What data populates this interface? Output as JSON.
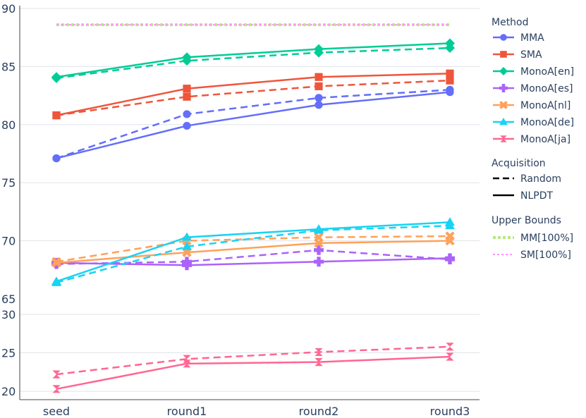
{
  "chart_data": {
    "type": "line",
    "categories": [
      "seed",
      "round1",
      "round2",
      "round3"
    ],
    "panels": [
      {
        "name": "upper",
        "ylim": [
          65,
          90
        ],
        "yticks": [
          65,
          70,
          75,
          80,
          85,
          90
        ]
      },
      {
        "name": "lower",
        "ylim": [
          19,
          30
        ],
        "yticks": [
          20,
          25,
          30
        ]
      }
    ],
    "grid": true,
    "legend_placement": "right",
    "legend": {
      "method_title": "Method",
      "acquisition_title": "Acquisition",
      "acquisition_items": [
        {
          "label": "Random",
          "dash": "dashed"
        },
        {
          "label": "NLPDT",
          "dash": "solid"
        }
      ],
      "bounds_title": "Upper Bounds"
    },
    "methods": [
      {
        "name": "MMA",
        "color": "#636efa",
        "marker": "circle",
        "panel": "upper",
        "nlpdt": [
          77.1,
          79.9,
          81.7,
          82.8
        ],
        "random": [
          77.1,
          80.9,
          82.3,
          83.0
        ]
      },
      {
        "name": "SMA",
        "color": "#ef553b",
        "marker": "square",
        "panel": "upper",
        "nlpdt": [
          80.8,
          83.1,
          84.1,
          84.4
        ],
        "random": [
          80.8,
          82.4,
          83.3,
          83.8
        ]
      },
      {
        "name": "MonoA[en]",
        "color": "#00cc96",
        "marker": "diamond",
        "panel": "upper",
        "nlpdt": [
          84.1,
          85.8,
          86.5,
          87.0
        ],
        "random": [
          84.0,
          85.5,
          86.2,
          86.6
        ]
      },
      {
        "name": "MonoA[es]",
        "color": "#ab63fa",
        "marker": "cross",
        "panel": "upper",
        "nlpdt": [
          68.1,
          67.9,
          68.2,
          68.5
        ],
        "random": [
          68.0,
          68.2,
          69.2,
          68.4
        ]
      },
      {
        "name": "MonoA[nl]",
        "color": "#ffa15a",
        "marker": "x",
        "panel": "upper",
        "nlpdt": [
          68.1,
          69.0,
          69.8,
          70.0
        ],
        "random": [
          68.2,
          70.0,
          70.3,
          70.4
        ]
      },
      {
        "name": "MonoA[de]",
        "color": "#19d3f3",
        "marker": "triangle-up",
        "panel": "upper",
        "nlpdt": [
          66.5,
          70.3,
          71.0,
          71.6
        ],
        "random": [
          66.4,
          69.5,
          70.9,
          71.3
        ]
      },
      {
        "name": "MonoA[ja]",
        "color": "#ff6692",
        "marker": "hourglass",
        "panel": "lower",
        "nlpdt": [
          20.3,
          23.6,
          23.8,
          24.5
        ],
        "random": [
          22.2,
          24.2,
          25.1,
          25.8
        ]
      }
    ],
    "upper_bounds": [
      {
        "name": "MM[100%]",
        "color": "#b6e880",
        "value": 88.6,
        "style": "dot-thick"
      },
      {
        "name": "SM[100%]",
        "color": "#ff97ff",
        "value": 88.6,
        "style": "dot-thin"
      }
    ]
  }
}
